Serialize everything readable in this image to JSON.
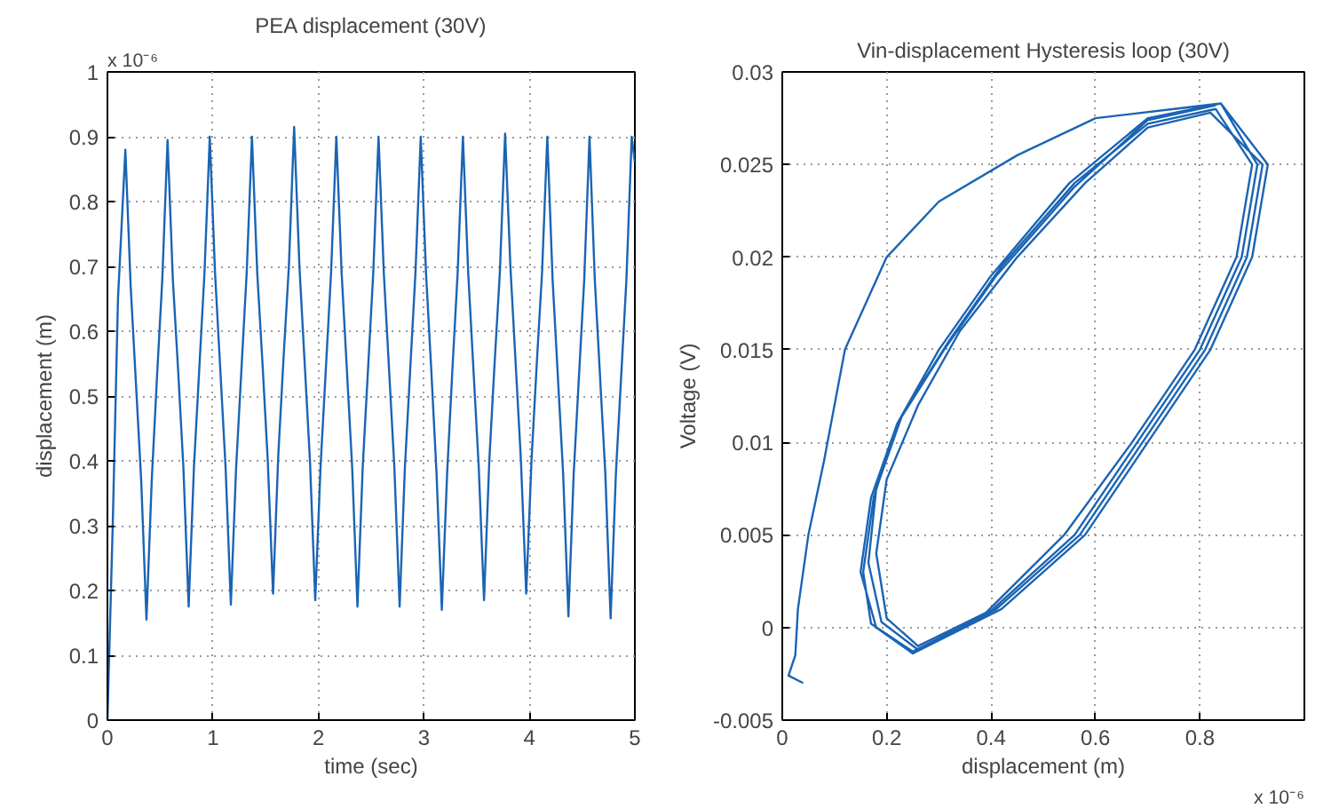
{
  "chart_data": [
    {
      "type": "line",
      "title": "PEA displacement (30V)",
      "xlabel": "time (sec)",
      "ylabel": "displacement (m)",
      "annotations": [
        "x 10⁻⁶"
      ],
      "x": [
        0,
        0.05,
        0.1,
        0.17,
        0.22,
        0.27,
        0.32,
        0.37,
        0.42,
        0.47,
        0.52,
        0.57,
        0.62,
        0.67,
        0.72,
        0.77,
        0.82,
        0.87,
        0.92,
        0.97,
        1.02,
        1.07,
        1.12,
        1.17,
        1.22,
        1.27,
        1.32,
        1.37,
        1.42,
        1.47,
        1.52,
        1.57,
        1.62,
        1.67,
        1.72,
        1.77,
        1.82,
        1.87,
        1.92,
        1.97,
        2.02,
        2.07,
        2.12,
        2.17,
        2.22,
        2.27,
        2.32,
        2.37,
        2.42,
        2.47,
        2.52,
        2.57,
        2.62,
        2.67,
        2.72,
        2.77,
        2.82,
        2.87,
        2.92,
        2.97,
        3.02,
        3.07,
        3.12,
        3.17,
        3.22,
        3.27,
        3.32,
        3.37,
        3.42,
        3.47,
        3.52,
        3.57,
        3.62,
        3.67,
        3.72,
        3.77,
        3.82,
        3.87,
        3.92,
        3.97,
        4.02,
        4.07,
        4.12,
        4.17,
        4.22,
        4.27,
        4.32,
        4.37,
        4.42,
        4.47,
        4.52,
        4.57,
        4.62,
        4.67,
        4.72,
        4.77,
        4.82,
        4.87,
        4.92,
        4.97,
        5.0
      ],
      "series": [
        {
          "color": "#1a64b4",
          "values": [
            0,
            0.3,
            0.65,
            0.88,
            0.67,
            0.52,
            0.37,
            0.155,
            0.37,
            0.53,
            0.68,
            0.895,
            0.68,
            0.54,
            0.39,
            0.175,
            0.39,
            0.54,
            0.69,
            0.9,
            0.69,
            0.54,
            0.39,
            0.178,
            0.39,
            0.54,
            0.69,
            0.9,
            0.69,
            0.55,
            0.4,
            0.195,
            0.41,
            0.56,
            0.7,
            0.915,
            0.7,
            0.55,
            0.4,
            0.185,
            0.39,
            0.54,
            0.69,
            0.9,
            0.69,
            0.54,
            0.39,
            0.175,
            0.39,
            0.54,
            0.69,
            0.9,
            0.69,
            0.54,
            0.39,
            0.175,
            0.39,
            0.54,
            0.69,
            0.9,
            0.69,
            0.54,
            0.38,
            0.17,
            0.38,
            0.54,
            0.69,
            0.9,
            0.69,
            0.54,
            0.39,
            0.185,
            0.4,
            0.55,
            0.69,
            0.905,
            0.7,
            0.55,
            0.4,
            0.195,
            0.4,
            0.55,
            0.69,
            0.9,
            0.68,
            0.53,
            0.38,
            0.16,
            0.38,
            0.53,
            0.68,
            0.9,
            0.68,
            0.53,
            0.38,
            0.157,
            0.38,
            0.53,
            0.68,
            0.9,
            0.86
          ]
        }
      ],
      "xlim": [
        0,
        5
      ],
      "ylim": [
        0,
        1
      ],
      "xticks": [
        0,
        1,
        2,
        3,
        4,
        5
      ],
      "yticks": [
        0,
        0.1,
        0.2,
        0.3,
        0.4,
        0.5,
        0.6,
        0.7,
        0.8,
        0.9,
        1
      ],
      "grid": true
    },
    {
      "type": "line",
      "title": "Vin-displacement Hysteresis loop (30V)",
      "xlabel": "displacement (m)",
      "ylabel": "Voltage (V)",
      "annotations": [
        "x 10⁻⁶"
      ],
      "series": [
        {
          "color": "#1a64b4",
          "x": [
            0.04,
            0.012,
            0.025,
            0.03,
            0.05,
            0.08,
            0.12,
            0.2,
            0.3,
            0.45,
            0.6,
            0.75,
            0.84,
            0.93,
            0.9,
            0.82,
            0.7,
            0.58,
            0.42,
            0.25,
            0.18,
            0.15,
            0.17,
            0.22,
            0.3,
            0.4,
            0.55,
            0.7,
            0.84,
            0.91,
            0.88,
            0.8,
            0.68,
            0.56,
            0.4,
            0.26,
            0.19,
            0.165,
            0.18,
            0.23,
            0.32,
            0.42,
            0.56,
            0.7,
            0.83,
            0.9,
            0.87,
            0.79,
            0.67,
            0.54,
            0.39,
            0.26,
            0.2,
            0.18,
            0.2,
            0.26,
            0.34,
            0.45,
            0.58,
            0.7,
            0.82,
            0.92,
            0.89,
            0.81,
            0.69,
            0.57,
            0.41,
            0.25,
            0.17,
            0.155,
            0.175,
            0.22,
            0.31,
            0.41,
            0.56,
            0.7,
            0.83
          ],
          "values": [
            -0.003,
            -0.0026,
            -0.0015,
            0.001,
            0.005,
            0.009,
            0.015,
            0.02,
            0.023,
            0.0255,
            0.0275,
            0.028,
            0.0283,
            0.025,
            0.02,
            0.015,
            0.01,
            0.005,
            0.001,
            -0.0014,
            0,
            0.003,
            0.007,
            0.011,
            0.015,
            0.019,
            0.024,
            0.0275,
            0.0283,
            0.025,
            0.02,
            0.015,
            0.01,
            0.005,
            0.0009,
            -0.0012,
            0.0003,
            0.0035,
            0.0075,
            0.0115,
            0.0155,
            0.0195,
            0.024,
            0.0272,
            0.028,
            0.025,
            0.02,
            0.015,
            0.01,
            0.005,
            0.0008,
            -0.001,
            0.0005,
            0.004,
            0.008,
            0.012,
            0.016,
            0.02,
            0.024,
            0.027,
            0.0278,
            0.025,
            0.02,
            0.015,
            0.01,
            0.005,
            0.001,
            -0.0013,
            0.0002,
            0.003,
            0.007,
            0.011,
            0.015,
            0.019,
            0.0238,
            0.0274,
            0.0282
          ]
        }
      ],
      "xlim": [
        0,
        1
      ],
      "ylim": [
        -0.005,
        0.03
      ],
      "xticks": [
        0,
        0.2,
        0.4,
        0.6,
        0.8
      ],
      "yticks": [
        -0.005,
        0,
        0.005,
        0.01,
        0.015,
        0.02,
        0.025,
        0.03
      ],
      "grid": true
    }
  ]
}
